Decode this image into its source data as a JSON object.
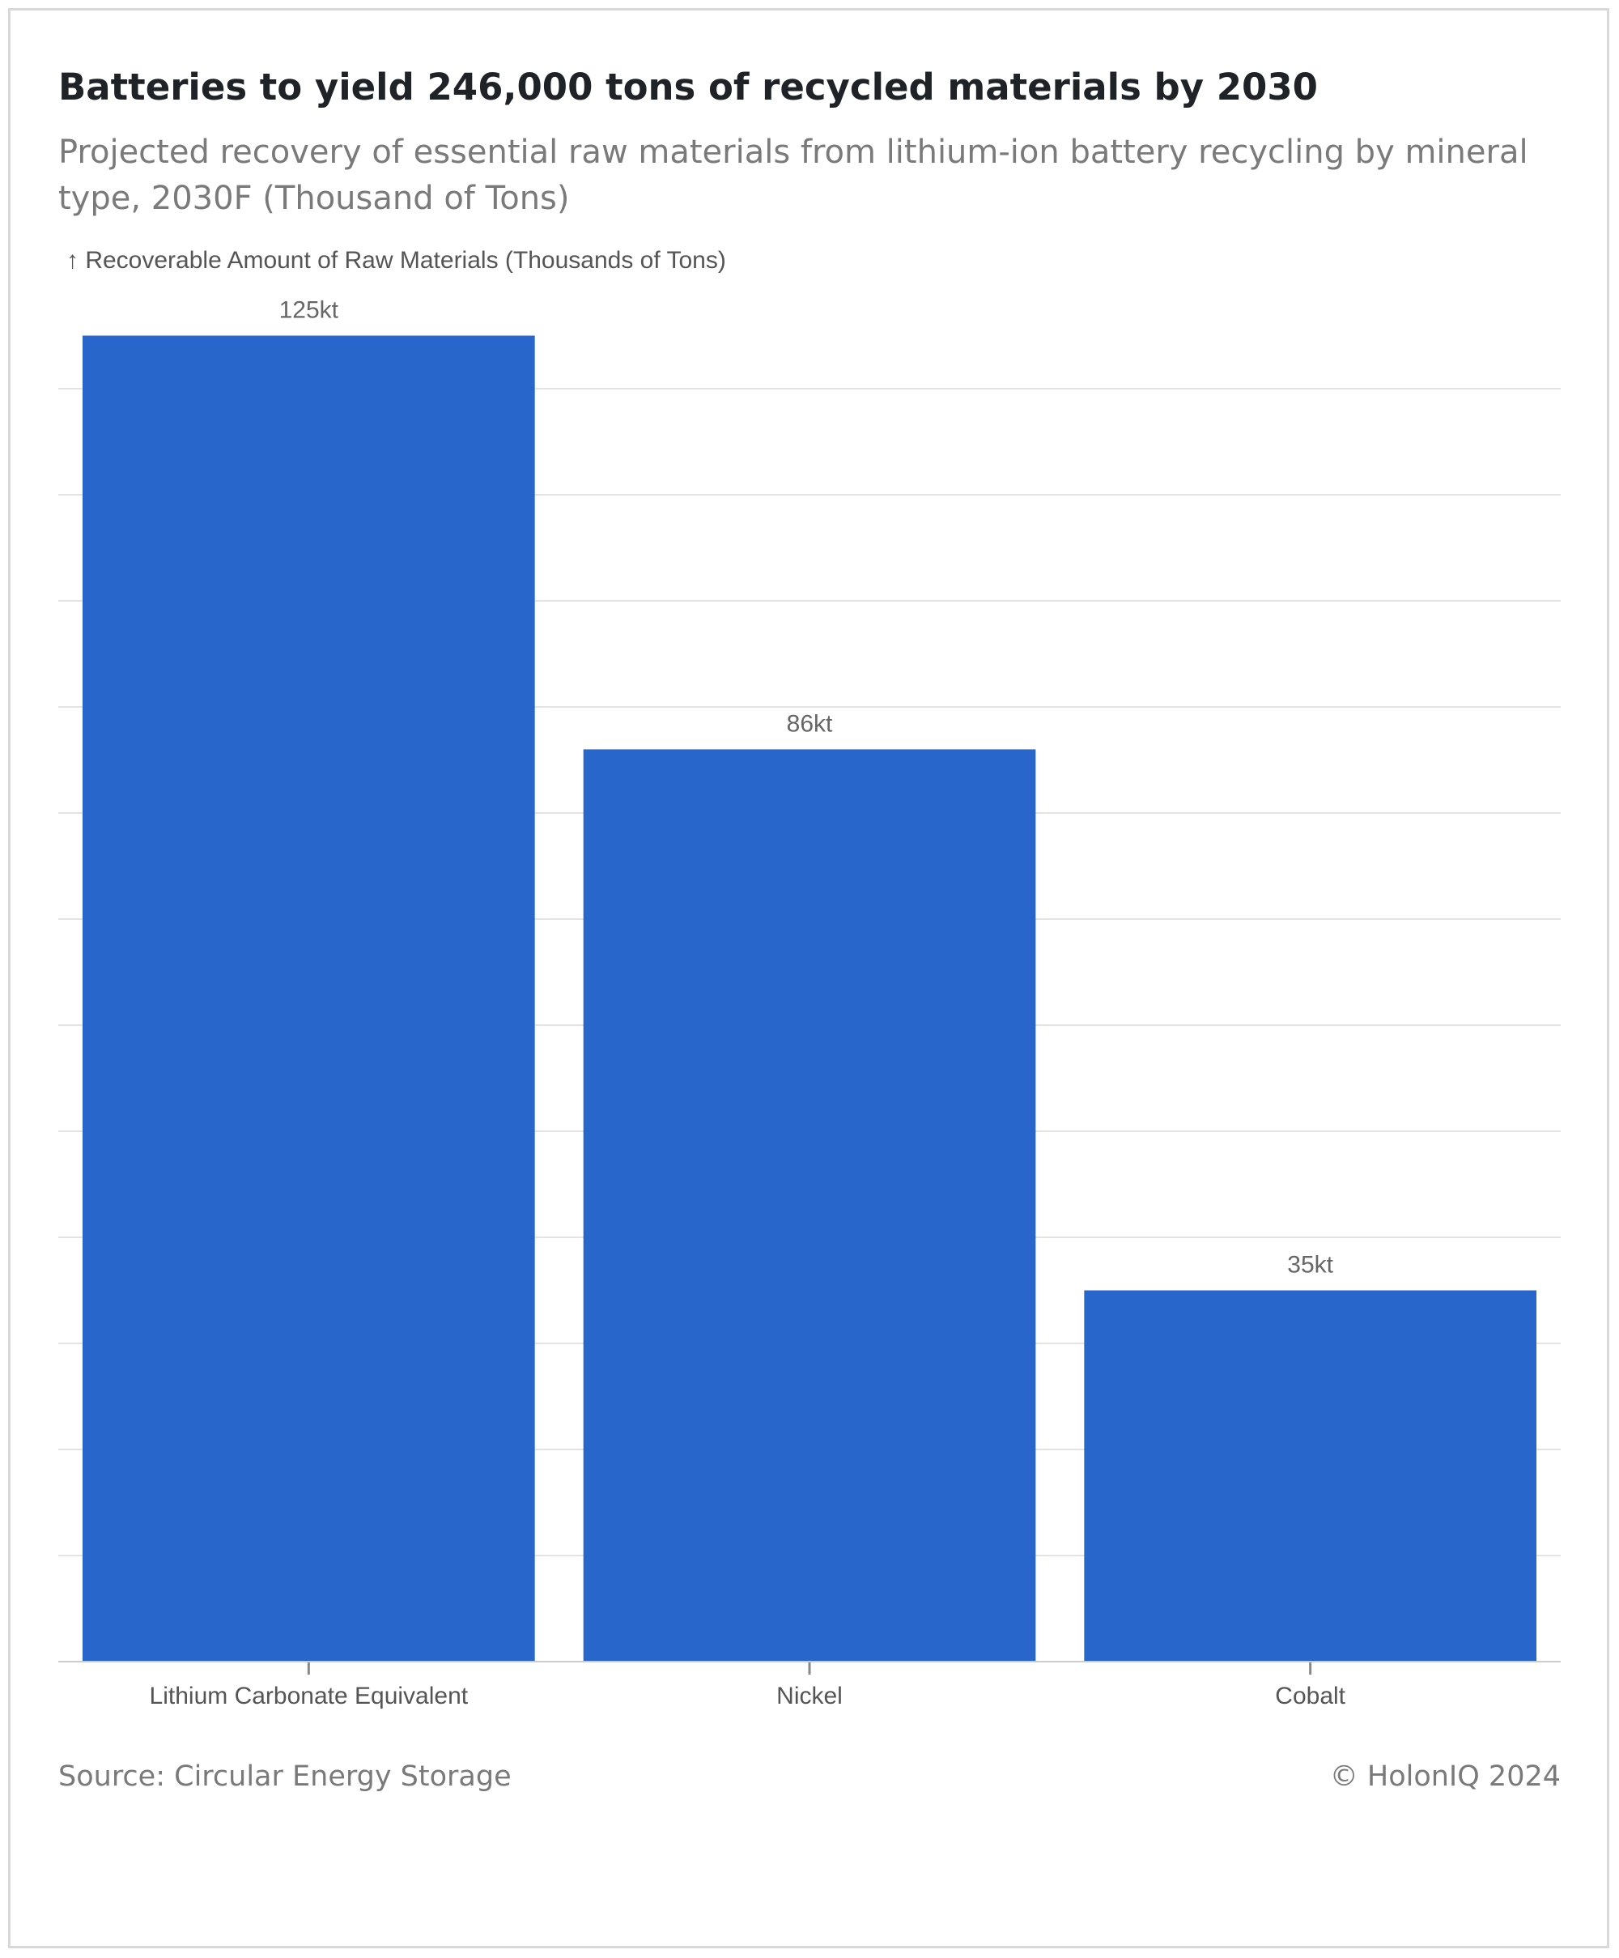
{
  "title": "Batteries to yield 246,000 tons of recycled materials by 2030",
  "subtitle": "Projected recovery of essential raw materials from lithium-ion battery recycling by mineral type, 2030F (Thousand of Tons)",
  "footer": {
    "source": "Source: Circular Energy Storage",
    "copyright": "© HolonIQ 2024"
  },
  "colors": {
    "bar": "#2966cc",
    "grid": "#e3e3e3",
    "axis": "#cccccc",
    "label": "#666666"
  },
  "chart_data": {
    "type": "bar",
    "title": "Batteries to yield 246,000 tons of recycled materials by 2030",
    "subtitle": "Projected recovery of essential raw materials from lithium-ion battery recycling by mineral type, 2030F (Thousand of Tons)",
    "xlabel": "",
    "ylabel": "↑ Recoverable Amount of Raw Materials (Thousands of Tons)",
    "categories": [
      "Lithium Carbonate Equivalent",
      "Nickel",
      "Cobalt"
    ],
    "values": [
      125,
      86,
      35
    ],
    "data_labels": [
      "125kt",
      "86kt",
      "35kt"
    ],
    "ylim": [
      0,
      120
    ],
    "y_tick_step": 10,
    "y_tick_labels_shown": false,
    "grid": true,
    "legend": "none"
  }
}
